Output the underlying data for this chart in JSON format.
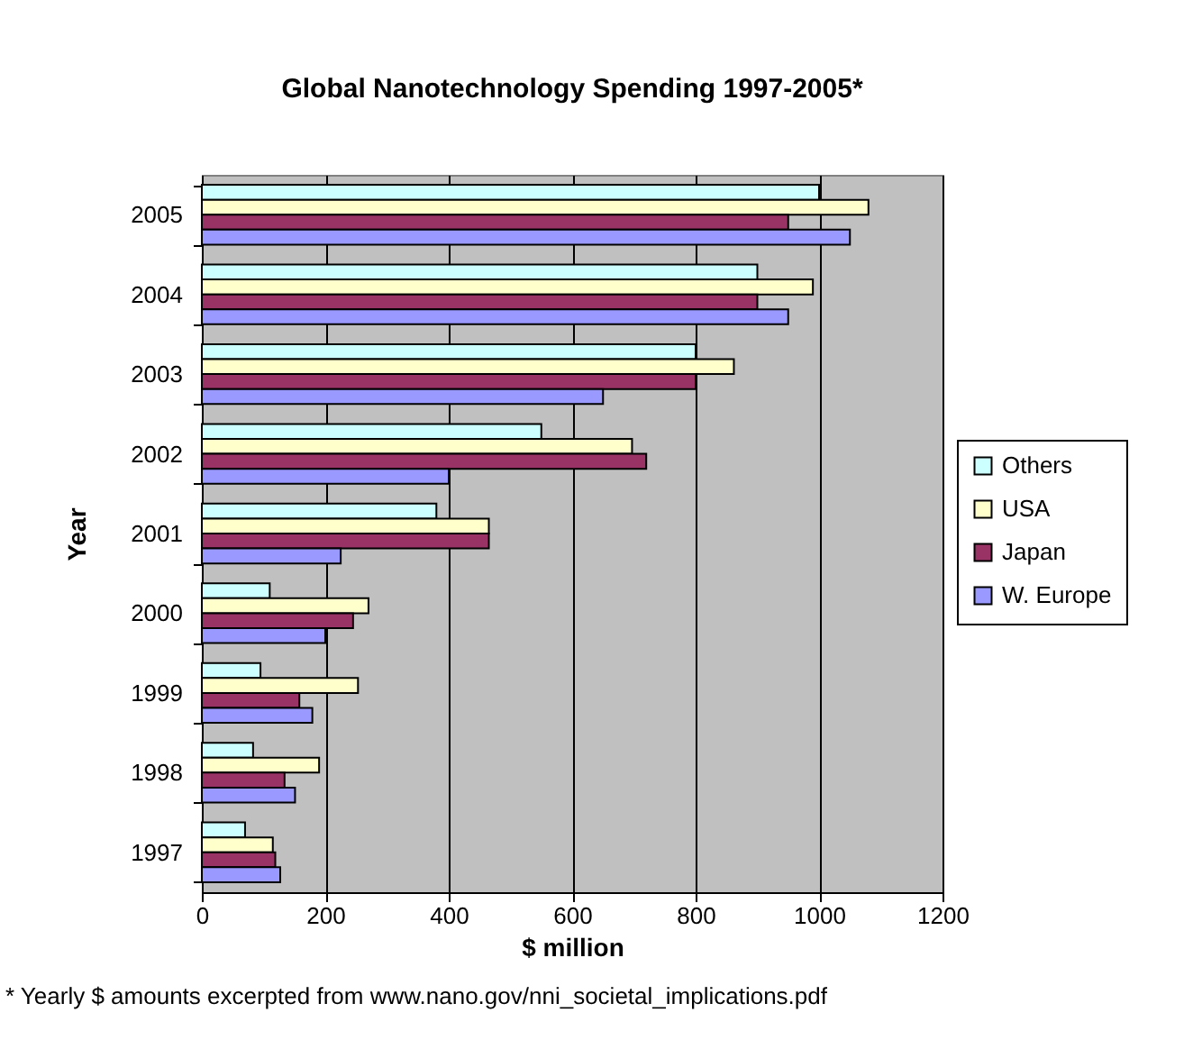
{
  "chart_data": {
    "type": "bar",
    "orientation": "horizontal",
    "title": "Global Nanotechnology Spending 1997-2005*",
    "xlabel": "$ million",
    "ylabel": "Year",
    "categories": [
      "2005",
      "2004",
      "2003",
      "2002",
      "2001",
      "2000",
      "1999",
      "1998",
      "1997"
    ],
    "series": [
      {
        "name": "Others",
        "color": "#ccffff",
        "values": [
          1000,
          900,
          800,
          550,
          380,
          110,
          95,
          83,
          70
        ]
      },
      {
        "name": "USA",
        "color": "#ffffcc",
        "values": [
          1080,
          990,
          862,
          697,
          465,
          270,
          253,
          190,
          115
        ]
      },
      {
        "name": "Japan",
        "color": "#993366",
        "values": [
          950,
          900,
          800,
          720,
          465,
          245,
          158,
          134,
          119
        ]
      },
      {
        "name": "W. Europe",
        "color": "#9999ff",
        "values": [
          1050,
          950,
          650,
          400,
          225,
          200,
          179,
          151,
          127
        ]
      }
    ],
    "xlim": [
      0,
      1200
    ],
    "xticks": [
      0,
      200,
      400,
      600,
      800,
      1000,
      1200
    ],
    "grid": "x",
    "legend": "right",
    "annotations": [
      "* Yearly $ amounts excerpted from www.nano.gov/nni_societal_implications.pdf"
    ]
  }
}
